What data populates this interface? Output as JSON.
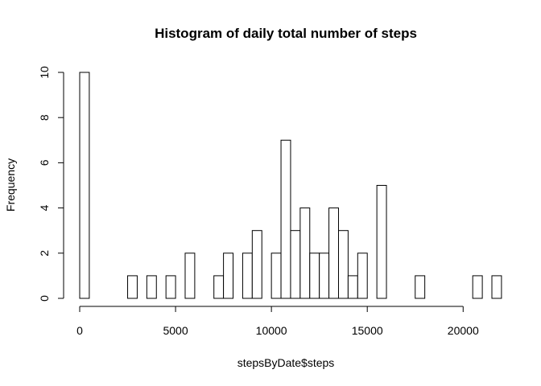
{
  "chart_data": {
    "type": "bar",
    "title": "Histogram of daily total number of steps",
    "xlabel": "stepsByDate$steps",
    "ylabel": "Frequency",
    "bin_width": 500,
    "x_start": 0,
    "values": [
      10,
      0,
      0,
      0,
      0,
      1,
      0,
      1,
      0,
      1,
      0,
      2,
      0,
      0,
      1,
      2,
      0,
      2,
      3,
      0,
      2,
      7,
      3,
      4,
      2,
      2,
      4,
      3,
      1,
      2,
      0,
      5,
      0,
      0,
      0,
      1,
      0,
      0,
      0,
      0,
      0,
      1,
      0,
      1
    ],
    "xlim": [
      0,
      21500
    ],
    "ylim": [
      0,
      10
    ],
    "x_ticks": [
      0,
      5000,
      10000,
      15000,
      20000
    ],
    "x_tick_labels": [
      "0",
      "5000",
      "10000",
      "15000",
      "20000"
    ],
    "y_ticks": [
      0,
      2,
      4,
      6,
      8,
      10
    ],
    "y_tick_labels": [
      "0",
      "2",
      "4",
      "6",
      "8",
      "10"
    ],
    "bar_fill": "#ffffff",
    "bar_stroke": "#000000",
    "grid": false,
    "legend": false
  }
}
